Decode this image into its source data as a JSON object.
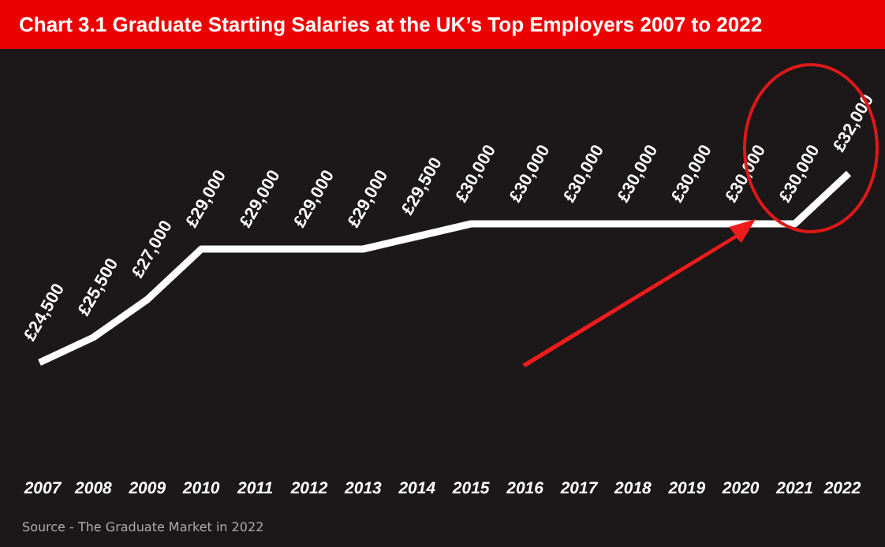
{
  "chart_data": {
    "type": "line",
    "title": "Chart 3.1  Graduate Starting Salaries at the UK’s Top Employers 2007 to 2022",
    "categories": [
      "2007",
      "2008",
      "2009",
      "2010",
      "2011",
      "2012",
      "2013",
      "2014",
      "2015",
      "2016",
      "2017",
      "2018",
      "2019",
      "2020",
      "2021",
      "2022"
    ],
    "series": [
      {
        "color": "#ffffff",
        "values": [
          24500,
          25500,
          27000,
          29000,
          29000,
          29000,
          29000,
          29500,
          30000,
          30000,
          30000,
          30000,
          30000,
          30000,
          30000,
          32000
        ],
        "value_labels": [
          "£24,500",
          "£25,500",
          "£27,000",
          "£29,000",
          "£29,000",
          "£29,000",
          "£29,000",
          "£29,500",
          "£30,000",
          "£30,000",
          "£30,000",
          "£30,000",
          "£30,000",
          "£30,000",
          "£30,000",
          "£32,000"
        ]
      }
    ],
    "annotations": [
      "Source - The Graduate Market in 2022"
    ],
    "grid": false,
    "marker": "none",
    "line_style": "solid"
  }
}
